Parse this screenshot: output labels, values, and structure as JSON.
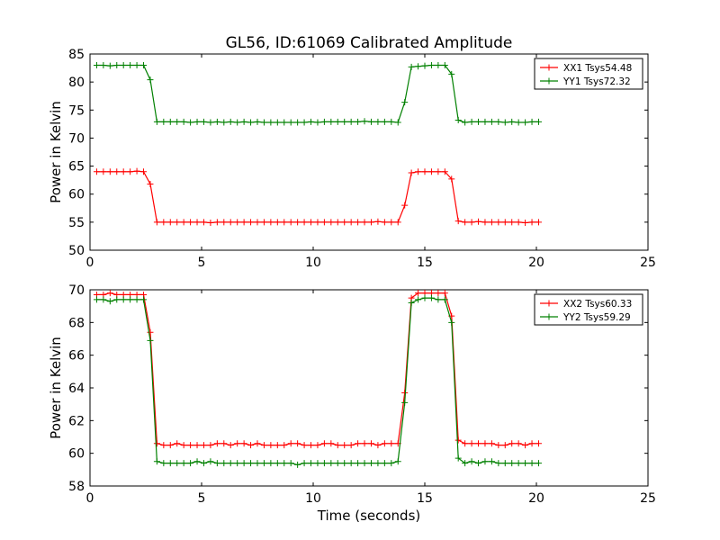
{
  "chart_data": [
    {
      "type": "line",
      "title": "GL56, ID:61069 Calibrated Amplitude",
      "xlabel": "",
      "ylabel": "Power in Kelvin",
      "xlim": [
        0,
        25
      ],
      "ylim": [
        50,
        85
      ],
      "xticks": [
        0,
        5,
        10,
        15,
        20,
        25
      ],
      "yticks": [
        50,
        55,
        60,
        65,
        70,
        75,
        80,
        85
      ],
      "grid": false,
      "legend": "top-right",
      "marker": "plus",
      "x": [
        0.3,
        0.6,
        0.9,
        1.2,
        1.5,
        1.8,
        2.1,
        2.4,
        2.7,
        3.0,
        3.3,
        3.6,
        3.9,
        4.2,
        4.5,
        4.8,
        5.1,
        5.4,
        5.7,
        6.0,
        6.3,
        6.6,
        6.9,
        7.2,
        7.5,
        7.8,
        8.1,
        8.4,
        8.7,
        9.0,
        9.3,
        9.6,
        9.9,
        10.2,
        10.5,
        10.8,
        11.1,
        11.4,
        11.7,
        12.0,
        12.3,
        12.6,
        12.9,
        13.2,
        13.5,
        13.8,
        14.1,
        14.4,
        14.7,
        15.0,
        15.3,
        15.6,
        15.9,
        16.2,
        16.5,
        16.8,
        17.1,
        17.4,
        17.7,
        18.0,
        18.3,
        18.6,
        18.9,
        19.2,
        19.5,
        19.8,
        20.1
      ],
      "series": [
        {
          "name": "XX1 Tsys54.48",
          "color": "#ff0000",
          "values": [
            64.0,
            64.0,
            64.0,
            64.0,
            64.0,
            64.0,
            64.1,
            64.0,
            61.8,
            55.0,
            55.0,
            55.0,
            55.0,
            55.0,
            55.0,
            55.0,
            55.0,
            54.9,
            55.0,
            55.0,
            55.0,
            55.0,
            55.0,
            55.0,
            55.0,
            55.0,
            55.0,
            55.0,
            55.0,
            55.0,
            55.0,
            55.0,
            55.0,
            55.0,
            55.0,
            55.0,
            55.0,
            55.0,
            55.0,
            55.0,
            55.0,
            55.0,
            55.1,
            55.0,
            55.0,
            55.0,
            58.0,
            63.8,
            64.0,
            64.0,
            64.0,
            64.0,
            64.0,
            62.7,
            55.2,
            55.0,
            55.0,
            55.1,
            55.0,
            55.0,
            55.0,
            55.0,
            55.0,
            55.0,
            54.9,
            55.0,
            55.0
          ]
        },
        {
          "name": "YY1 Tsys72.32",
          "color": "#008000",
          "values": [
            83.0,
            83.0,
            82.9,
            83.0,
            83.0,
            83.0,
            83.0,
            83.0,
            80.4,
            72.9,
            72.9,
            72.9,
            72.9,
            72.9,
            72.8,
            72.9,
            72.9,
            72.8,
            72.9,
            72.8,
            72.9,
            72.8,
            72.9,
            72.8,
            72.9,
            72.8,
            72.8,
            72.8,
            72.8,
            72.8,
            72.8,
            72.8,
            72.9,
            72.8,
            72.9,
            72.9,
            72.9,
            72.9,
            72.9,
            72.9,
            73.0,
            72.9,
            72.9,
            72.9,
            72.9,
            72.8,
            76.4,
            82.7,
            82.8,
            82.9,
            83.0,
            83.0,
            83.0,
            81.4,
            73.2,
            72.8,
            72.9,
            72.9,
            72.9,
            72.9,
            72.9,
            72.8,
            72.9,
            72.8,
            72.8,
            72.9,
            72.9
          ]
        }
      ]
    },
    {
      "type": "line",
      "title": "",
      "xlabel": "Time (seconds)",
      "ylabel": "Power in Kelvin",
      "xlim": [
        0,
        25
      ],
      "ylim": [
        58,
        70
      ],
      "xticks": [
        0,
        5,
        10,
        15,
        20,
        25
      ],
      "yticks": [
        58,
        60,
        62,
        64,
        66,
        68,
        70
      ],
      "grid": false,
      "legend": "top-right",
      "marker": "plus",
      "x": [
        0.3,
        0.6,
        0.9,
        1.2,
        1.5,
        1.8,
        2.1,
        2.4,
        2.7,
        3.0,
        3.3,
        3.6,
        3.9,
        4.2,
        4.5,
        4.8,
        5.1,
        5.4,
        5.7,
        6.0,
        6.3,
        6.6,
        6.9,
        7.2,
        7.5,
        7.8,
        8.1,
        8.4,
        8.7,
        9.0,
        9.3,
        9.6,
        9.9,
        10.2,
        10.5,
        10.8,
        11.1,
        11.4,
        11.7,
        12.0,
        12.3,
        12.6,
        12.9,
        13.2,
        13.5,
        13.8,
        14.1,
        14.4,
        14.7,
        15.0,
        15.3,
        15.6,
        15.9,
        16.2,
        16.5,
        16.8,
        17.1,
        17.4,
        17.7,
        18.0,
        18.3,
        18.6,
        18.9,
        19.2,
        19.5,
        19.8,
        20.1
      ],
      "series": [
        {
          "name": "XX2 Tsys60.33",
          "color": "#ff0000",
          "values": [
            69.7,
            69.7,
            69.8,
            69.7,
            69.7,
            69.7,
            69.7,
            69.7,
            67.4,
            60.6,
            60.5,
            60.5,
            60.6,
            60.5,
            60.5,
            60.5,
            60.5,
            60.5,
            60.6,
            60.6,
            60.5,
            60.6,
            60.6,
            60.5,
            60.6,
            60.5,
            60.5,
            60.5,
            60.5,
            60.6,
            60.6,
            60.5,
            60.5,
            60.5,
            60.6,
            60.6,
            60.5,
            60.5,
            60.5,
            60.6,
            60.6,
            60.6,
            60.5,
            60.6,
            60.6,
            60.6,
            63.7,
            69.5,
            69.8,
            69.8,
            69.8,
            69.8,
            69.8,
            68.4,
            60.8,
            60.6,
            60.6,
            60.6,
            60.6,
            60.6,
            60.5,
            60.5,
            60.6,
            60.6,
            60.5,
            60.6,
            60.6
          ]
        },
        {
          "name": "YY2 Tsys59.29",
          "color": "#008000",
          "values": [
            69.4,
            69.4,
            69.3,
            69.4,
            69.4,
            69.4,
            69.4,
            69.4,
            66.9,
            59.5,
            59.4,
            59.4,
            59.4,
            59.4,
            59.4,
            59.5,
            59.4,
            59.5,
            59.4,
            59.4,
            59.4,
            59.4,
            59.4,
            59.4,
            59.4,
            59.4,
            59.4,
            59.4,
            59.4,
            59.4,
            59.3,
            59.4,
            59.4,
            59.4,
            59.4,
            59.4,
            59.4,
            59.4,
            59.4,
            59.4,
            59.4,
            59.4,
            59.4,
            59.4,
            59.4,
            59.5,
            63.1,
            69.2,
            69.4,
            69.5,
            69.5,
            69.4,
            69.4,
            68.0,
            59.7,
            59.4,
            59.5,
            59.4,
            59.5,
            59.5,
            59.4,
            59.4,
            59.4,
            59.4,
            59.4,
            59.4,
            59.4
          ]
        }
      ]
    }
  ]
}
